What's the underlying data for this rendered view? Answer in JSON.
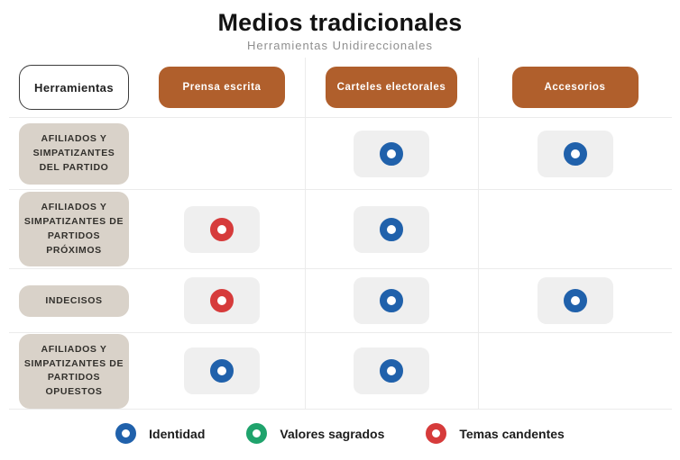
{
  "title": "Medios tradicionales",
  "subtitle": "Herramientas Unidireccionales",
  "header": {
    "corner_label": "Herramientas",
    "columns": [
      {
        "label": "Prensa escrita"
      },
      {
        "label": "Carteles electorales"
      },
      {
        "label": "Accesorios"
      }
    ]
  },
  "rows": [
    {
      "label": "AFILIADOS Y SIMPATIZANTES DEL PARTIDO",
      "cells": [
        "",
        "identidad",
        "identidad"
      ]
    },
    {
      "label": "AFILIADOS Y SIMPATIZANTES DE PARTIDOS PRÓXIMOS",
      "cells": [
        "temas-candentes",
        "identidad",
        ""
      ]
    },
    {
      "label": "INDECISOS",
      "cells": [
        "temas-candentes",
        "identidad",
        "identidad"
      ]
    },
    {
      "label": "AFILIADOS Y SIMPATIZANTES DE PARTIDOS OPUESTOS",
      "cells": [
        "identidad",
        "identidad",
        ""
      ]
    }
  ],
  "legend": [
    {
      "key": "identidad",
      "label": "Identidad",
      "color": "#2061ab"
    },
    {
      "key": "valores-sagrados",
      "label": "Valores sagrados",
      "color": "#1fa36c"
    },
    {
      "key": "temas-candentes",
      "label": "Temas candentes",
      "color": "#d63b3b"
    }
  ],
  "colors": {
    "column_header_bg": "#b05f2c",
    "row_label_bg": "#d9d2c9",
    "cell_chip_bg": "#efefef",
    "grid_line": "#ebebeb",
    "subtitle_text": "#8f8f8f"
  }
}
